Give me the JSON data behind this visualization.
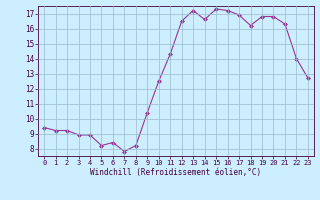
{
  "x": [
    0,
    1,
    2,
    3,
    4,
    5,
    6,
    7,
    8,
    9,
    10,
    11,
    12,
    13,
    14,
    15,
    16,
    17,
    18,
    19,
    20,
    21,
    22,
    23
  ],
  "y": [
    9.4,
    9.2,
    9.2,
    8.9,
    8.9,
    8.2,
    8.4,
    7.8,
    8.2,
    10.4,
    12.5,
    14.3,
    16.5,
    17.2,
    16.6,
    17.3,
    17.2,
    16.9,
    16.2,
    16.8,
    16.8,
    16.3,
    14.0,
    12.7
  ],
  "xlabel": "Windchill (Refroidissement éolien,°C)",
  "bg_color": "#cceeff",
  "line_color": "#993399",
  "grid_color": "#99bbcc",
  "ylim": [
    7.5,
    17.5
  ],
  "xlim": [
    -0.5,
    23.5
  ],
  "yticks": [
    8,
    9,
    10,
    11,
    12,
    13,
    14,
    15,
    16,
    17
  ],
  "xticks": [
    0,
    1,
    2,
    3,
    4,
    5,
    6,
    7,
    8,
    9,
    10,
    11,
    12,
    13,
    14,
    15,
    16,
    17,
    18,
    19,
    20,
    21,
    22,
    23
  ]
}
